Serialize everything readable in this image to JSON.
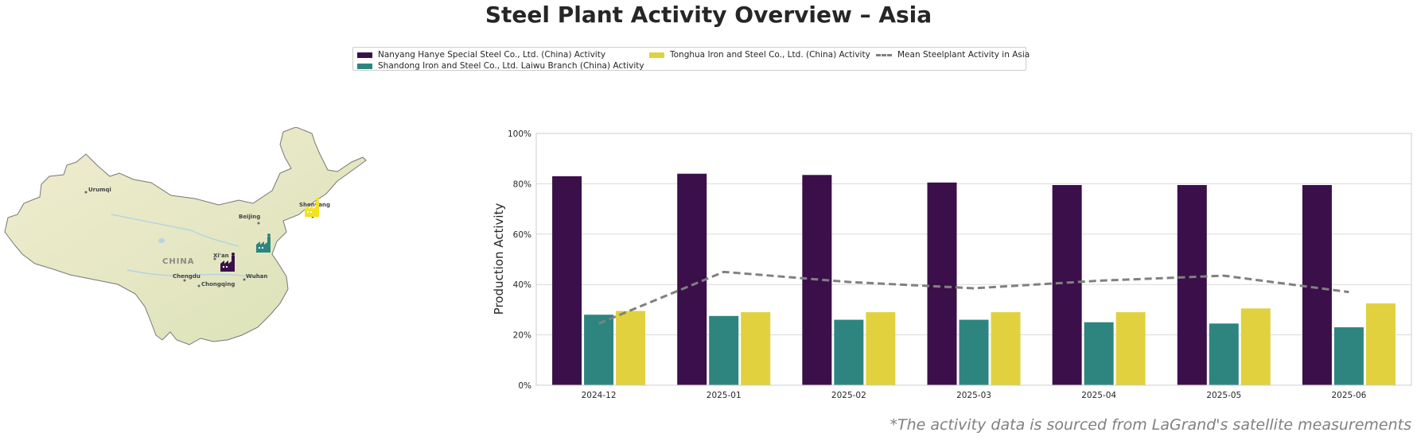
{
  "title": "Steel Plant Activity Overview – Asia",
  "footnote": "*The activity data is sourced from LaGrand's satellite measurements",
  "map": {
    "country_label": "CHINA",
    "cities": [
      {
        "name": "Urumqi"
      },
      {
        "name": "Beijing"
      },
      {
        "name": "Shenyang"
      },
      {
        "name": "Xi'an"
      },
      {
        "name": "Chengdu"
      },
      {
        "name": "Chongqing"
      },
      {
        "name": "Wuhan"
      }
    ],
    "plant_icons": [
      {
        "plant": "Nanyang Hanye Special Steel Co., Ltd. (China)",
        "icon": "factory-icon",
        "color": "#3b0f4a"
      },
      {
        "plant": "Shandong Iron and Steel Co., Ltd. Laiwu Branch (China)",
        "icon": "factory-icon",
        "color": "#2e8580"
      },
      {
        "plant": "Tonghua Iron and Steel Co., Ltd. (China)",
        "icon": "factory-icon",
        "color": "#f2e21f"
      }
    ]
  },
  "chart_data": {
    "type": "bar",
    "title": "",
    "xlabel": "",
    "ylabel": "Production Activity",
    "ylim": [
      0,
      100
    ],
    "yticks": [
      "0%",
      "20%",
      "40%",
      "60%",
      "80%",
      "100%"
    ],
    "grid": "horizontal",
    "legend_position": "top-center",
    "categories": [
      "2024-12",
      "2025-01",
      "2025-02",
      "2025-03",
      "2025-04",
      "2025-05",
      "2025-06"
    ],
    "series": [
      {
        "name": "Nanyang Hanye Special Steel Co., Ltd. (China) Activity",
        "type": "bar",
        "color": "#3b0f4a",
        "values": [
          83,
          84,
          83.5,
          80.5,
          79.5,
          79.5,
          79.5
        ]
      },
      {
        "name": "Shandong Iron and Steel Co., Ltd. Laiwu Branch (China) Activity",
        "type": "bar",
        "color": "#2e8580",
        "values": [
          28,
          27.5,
          26,
          26,
          25,
          24.5,
          23
        ]
      },
      {
        "name": "Tonghua Iron and Steel Co., Ltd. (China) Activity",
        "type": "bar",
        "color": "#e1d13f",
        "values": [
          29.5,
          29,
          29,
          29,
          29,
          30.5,
          32.5
        ]
      },
      {
        "name": "Mean Steelplant Activity in Asia",
        "type": "line",
        "style": "dashed",
        "color": "#808080",
        "values": [
          24.5,
          45,
          41,
          38.5,
          41.5,
          43.5,
          37
        ]
      }
    ]
  }
}
